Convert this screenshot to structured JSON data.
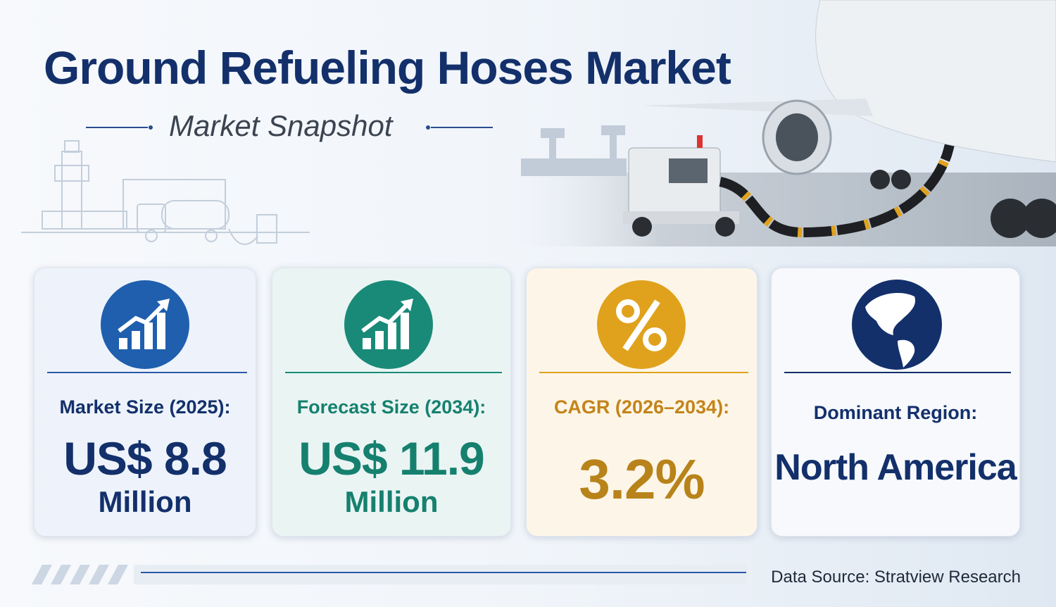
{
  "header": {
    "title": "Ground Refueling Hoses Market",
    "subtitle": "Market Snapshot"
  },
  "cards": [
    {
      "label": "Market Size (2025):",
      "value": "US$ 8.8",
      "unit": "Million"
    },
    {
      "label": "Forecast Size (2034):",
      "value": "US$ 11.9",
      "unit": "Million"
    },
    {
      "label": "CAGR (2026–2034):",
      "value": "3.2%"
    },
    {
      "label": "Dominant Region:",
      "value": "North America"
    }
  ],
  "footer": {
    "source": "Data Source: Stratview Research"
  }
}
